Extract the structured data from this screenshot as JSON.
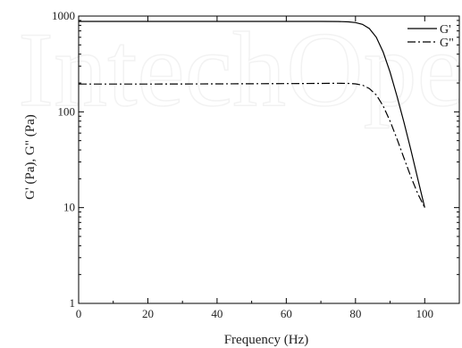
{
  "chart_data": {
    "type": "line",
    "xlabel": "Frequency (Hz)",
    "ylabel": "G' (Pa), G\" (Pa)",
    "x_scale": "linear",
    "y_scale": "log",
    "xlim": [
      0,
      110
    ],
    "ylim": [
      1,
      1000
    ],
    "x_ticks": [
      0,
      20,
      40,
      60,
      80,
      100
    ],
    "x_tick_labels": [
      "0",
      "20",
      "40",
      "60",
      "80",
      "100"
    ],
    "y_ticks": [
      1,
      10,
      100,
      1000
    ],
    "y_tick_labels": [
      "1",
      "10",
      "100",
      "1000"
    ],
    "grid": false,
    "legend_position": "top-right",
    "watermark": "IntechOpen",
    "series": [
      {
        "name": "G'",
        "style": "solid",
        "color": "#000000",
        "x": [
          0,
          20,
          40,
          60,
          70,
          75,
          78,
          80,
          82,
          84,
          86,
          88,
          90,
          92,
          94,
          96,
          98,
          100
        ],
        "y": [
          880,
          880,
          880,
          880,
          880,
          878,
          870,
          855,
          820,
          740,
          600,
          420,
          260,
          145,
          78,
          40,
          20,
          10
        ]
      },
      {
        "name": "G\"",
        "style": "dash-dot",
        "color": "#000000",
        "x": [
          0,
          20,
          40,
          60,
          70,
          75,
          78,
          80,
          82,
          84,
          86,
          88,
          90,
          92,
          94,
          96,
          98,
          100
        ],
        "y": [
          195,
          195,
          196,
          197,
          198,
          199,
          198,
          196,
          190,
          175,
          150,
          115,
          80,
          52,
          33,
          21,
          14,
          10
        ]
      }
    ]
  }
}
